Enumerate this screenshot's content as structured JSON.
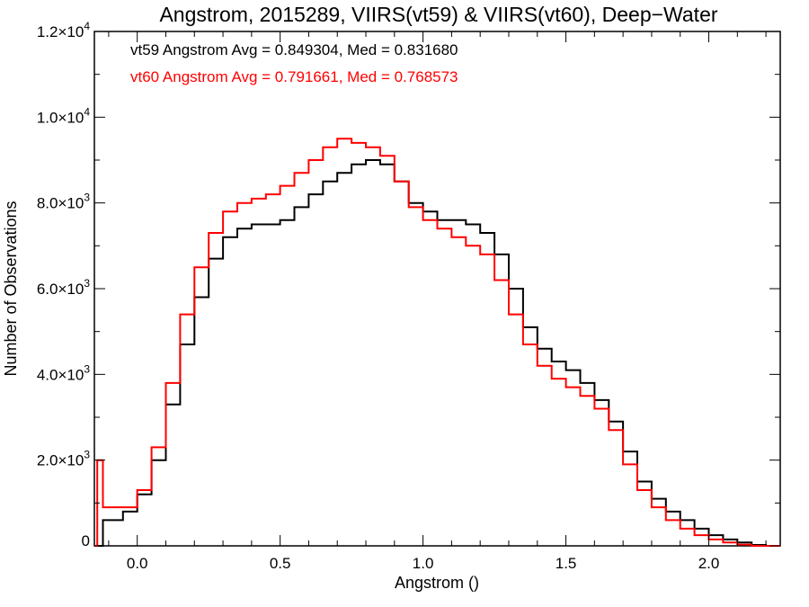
{
  "chart_data": {
    "type": "line",
    "step": true,
    "title": "Angstrom, 2015289, VIIRS(vt59) & VIIRS(vt60), Deep−Water",
    "xlabel": "Angstrom ()",
    "ylabel": "Number of Observations",
    "xlim": [
      -0.15,
      2.25
    ],
    "ylim": [
      0,
      12000
    ],
    "grid": false,
    "x_ticks": [
      0.0,
      0.5,
      1.0,
      1.5,
      2.0
    ],
    "x_tick_labels": [
      "0.0",
      "0.5",
      "1.0",
      "1.5",
      "2.0"
    ],
    "y_ticks": [
      {
        "value": 0,
        "mantissa": "0",
        "exp": ""
      },
      {
        "value": 2000,
        "mantissa": "2.0×10",
        "exp": "3"
      },
      {
        "value": 4000,
        "mantissa": "4.0×10",
        "exp": "3"
      },
      {
        "value": 6000,
        "mantissa": "6.0×10",
        "exp": "3"
      },
      {
        "value": 8000,
        "mantissa": "8.0×10",
        "exp": "3"
      },
      {
        "value": 10000,
        "mantissa": "1.0×10",
        "exp": "4"
      },
      {
        "value": 12000,
        "mantissa": "1.2×10",
        "exp": "4"
      }
    ],
    "annotations": [
      {
        "text": "vt59 Angstrom Avg = 0.849304, Med = 0.831680",
        "color": "#000000"
      },
      {
        "text": "vt60 Angstrom Avg = 0.791661, Med = 0.768573",
        "color": "#ff0000"
      }
    ],
    "series": [
      {
        "color": "#000000",
        "x": [
          -0.15,
          -0.12,
          -0.05,
          0.0,
          0.05,
          0.1,
          0.15,
          0.2,
          0.25,
          0.3,
          0.35,
          0.4,
          0.45,
          0.5,
          0.55,
          0.6,
          0.65,
          0.7,
          0.75,
          0.8,
          0.85,
          0.9,
          0.95,
          1.0,
          1.05,
          1.1,
          1.15,
          1.2,
          1.25,
          1.3,
          1.35,
          1.4,
          1.45,
          1.5,
          1.55,
          1.6,
          1.65,
          1.7,
          1.75,
          1.8,
          1.85,
          1.9,
          1.95,
          2.0,
          2.05,
          2.1,
          2.15,
          2.2,
          2.25
        ],
        "y": [
          0,
          600,
          800,
          1200,
          2000,
          3300,
          4700,
          5800,
          6700,
          7200,
          7400,
          7500,
          7500,
          7600,
          7900,
          8200,
          8500,
          8700,
          8900,
          9000,
          8900,
          8500,
          8000,
          7800,
          7600,
          7600,
          7500,
          7300,
          6800,
          6000,
          5100,
          4600,
          4300,
          4100,
          3800,
          3400,
          2900,
          2200,
          1500,
          1100,
          800,
          600,
          400,
          250,
          150,
          80,
          20,
          0,
          0
        ]
      },
      {
        "color": "#ff0000",
        "x": [
          -0.15,
          -0.14,
          -0.12,
          -0.05,
          0.0,
          0.05,
          0.1,
          0.15,
          0.2,
          0.25,
          0.3,
          0.35,
          0.4,
          0.45,
          0.5,
          0.55,
          0.6,
          0.65,
          0.7,
          0.75,
          0.8,
          0.85,
          0.9,
          0.95,
          1.0,
          1.05,
          1.1,
          1.15,
          1.2,
          1.25,
          1.3,
          1.35,
          1.4,
          1.45,
          1.5,
          1.55,
          1.6,
          1.65,
          1.7,
          1.75,
          1.8,
          1.85,
          1.9,
          1.95,
          2.0,
          2.05,
          2.1,
          2.15,
          2.2,
          2.25
        ],
        "y": [
          0,
          2000,
          900,
          900,
          1300,
          2300,
          3800,
          5400,
          6500,
          7300,
          7800,
          8000,
          8100,
          8200,
          8400,
          8700,
          9000,
          9300,
          9500,
          9400,
          9300,
          9100,
          8500,
          7900,
          7600,
          7400,
          7200,
          7000,
          6800,
          6200,
          5400,
          4700,
          4200,
          3900,
          3700,
          3500,
          3200,
          2700,
          1900,
          1300,
          900,
          600,
          400,
          250,
          150,
          80,
          30,
          0,
          0,
          0
        ]
      }
    ]
  }
}
